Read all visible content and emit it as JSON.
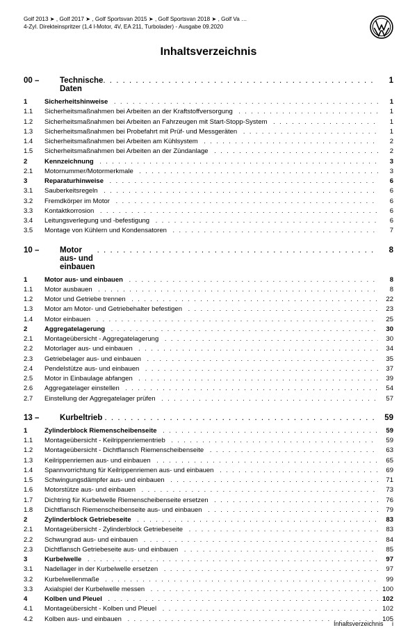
{
  "header": {
    "line1": "Golf 2013 ➤ , Golf 2017 ➤ , Golf Sportsvan 2015 ➤ , Golf Sportsvan 2018 ➤ , Golf Va …",
    "line2": "4-Zyl. Direkteinspritzer (1,4 l-Motor, 4V, EA 211, Turbolader) - Ausgabe 09.2020"
  },
  "title": "Inhaltsverzeichnis",
  "footer": {
    "label": "Inhaltsverzeichnis",
    "page": "i"
  },
  "chapters": [
    {
      "num": "00 –",
      "title": "Technische Daten",
      "page": "1",
      "entries": [
        {
          "num": "1",
          "label": "Sicherheitshinweise",
          "page": "1",
          "bold": true
        },
        {
          "num": "1.1",
          "label": "Sicherheitsmaßnahmen bei Arbeiten an der Kraftstoffversorgung",
          "page": "1"
        },
        {
          "num": "1.2",
          "label": "Sicherheitsmaßnahmen bei Arbeiten an Fahrzeugen mit Start-Stopp-System",
          "page": "1"
        },
        {
          "num": "1.3",
          "label": "Sicherheitsmaßnahmen bei Probefahrt mit Prüf- und Messgeräten",
          "page": "1"
        },
        {
          "num": "1.4",
          "label": "Sicherheitsmaßnahmen bei Arbeiten am Kühlsystem",
          "page": "2"
        },
        {
          "num": "1.5",
          "label": "Sicherheitsmaßnahmen bei Arbeiten an der Zündanlage",
          "page": "2"
        },
        {
          "num": "2",
          "label": "Kennzeichnung",
          "page": "3",
          "bold": true
        },
        {
          "num": "2.1",
          "label": "Motornummer/Motormerkmale",
          "page": "3"
        },
        {
          "num": "3",
          "label": "Reparaturhinweise",
          "page": "6",
          "bold": true
        },
        {
          "num": "3.1",
          "label": "Sauberkeitsregeln",
          "page": "6"
        },
        {
          "num": "3.2",
          "label": "Fremdkörper im Motor",
          "page": "6"
        },
        {
          "num": "3.3",
          "label": "Kontaktkorrosion",
          "page": "6"
        },
        {
          "num": "3.4",
          "label": "Leitungsverlegung und -befestigung",
          "page": "6"
        },
        {
          "num": "3.5",
          "label": "Montage von Kühlern und Kondensatoren",
          "page": "7"
        }
      ]
    },
    {
      "num": "10 –",
      "title": "Motor aus- und einbauen",
      "page": "8",
      "entries": [
        {
          "num": "1",
          "label": "Motor aus- und einbauen",
          "page": "8",
          "bold": true
        },
        {
          "num": "1.1",
          "label": "Motor ausbauen",
          "page": "8"
        },
        {
          "num": "1.2",
          "label": "Motor und Getriebe trennen",
          "page": "22"
        },
        {
          "num": "1.3",
          "label": "Motor am Motor- und Getriebehalter befestigen",
          "page": "23"
        },
        {
          "num": "1.4",
          "label": "Motor einbauen",
          "page": "25"
        },
        {
          "num": "2",
          "label": "Aggregatelagerung",
          "page": "30",
          "bold": true
        },
        {
          "num": "2.1",
          "label": "Montageübersicht - Aggregatelagerung",
          "page": "30"
        },
        {
          "num": "2.2",
          "label": "Motorlager aus- und einbauen",
          "page": "34"
        },
        {
          "num": "2.3",
          "label": "Getriebelager aus- und einbauen",
          "page": "35"
        },
        {
          "num": "2.4",
          "label": "Pendelstütze aus- und einbauen",
          "page": "37"
        },
        {
          "num": "2.5",
          "label": "Motor in Einbaulage abfangen",
          "page": "39"
        },
        {
          "num": "2.6",
          "label": "Aggregatelager einstellen",
          "page": "54"
        },
        {
          "num": "2.7",
          "label": "Einstellung der Aggregatelager prüfen",
          "page": "57"
        }
      ]
    },
    {
      "num": "13 –",
      "title": "Kurbeltrieb",
      "page": "59",
      "entries": [
        {
          "num": "1",
          "label": "Zylinderblock Riemenscheibenseite",
          "page": "59",
          "bold": true
        },
        {
          "num": "1.1",
          "label": "Montageübersicht - Keilrippenriementrieb",
          "page": "59"
        },
        {
          "num": "1.2",
          "label": "Montageübersicht - Dichtflansch Riemenscheibenseite",
          "page": "63"
        },
        {
          "num": "1.3",
          "label": "Keilrippenriemen aus- und einbauen",
          "page": "65"
        },
        {
          "num": "1.4",
          "label": "Spannvorrichtung für Keilrippenriemen aus- und einbauen",
          "page": "69"
        },
        {
          "num": "1.5",
          "label": "Schwingungsdämpfer aus- und einbauen",
          "page": "71"
        },
        {
          "num": "1.6",
          "label": "Motorstütze aus- und einbauen",
          "page": "73"
        },
        {
          "num": "1.7",
          "label": "Dichtring für Kurbelwelle Riemenscheibenseite ersetzen",
          "page": "76"
        },
        {
          "num": "1.8",
          "label": "Dichtflansch Riemenscheibenseite aus- und einbauen",
          "page": "79"
        },
        {
          "num": "2",
          "label": "Zylinderblock Getriebeseite",
          "page": "83",
          "bold": true
        },
        {
          "num": "2.1",
          "label": "Montageübersicht - Zylinderblock Getriebeseite",
          "page": "83"
        },
        {
          "num": "2.2",
          "label": "Schwungrad aus- und einbauen",
          "page": "84"
        },
        {
          "num": "2.3",
          "label": "Dichtflansch Getriebeseite aus- und einbauen",
          "page": "85"
        },
        {
          "num": "3",
          "label": "Kurbelwelle",
          "page": "97",
          "bold": true
        },
        {
          "num": "3.1",
          "label": "Nadellager in der Kurbelwelle ersetzen",
          "page": "97"
        },
        {
          "num": "3.2",
          "label": "Kurbelwellenmaße",
          "page": "99"
        },
        {
          "num": "3.3",
          "label": "Axialspiel der Kurbelwelle messen",
          "page": "100"
        },
        {
          "num": "4",
          "label": "Kolben und Pleuel",
          "page": "102",
          "bold": true
        },
        {
          "num": "4.1",
          "label": "Montageübersicht - Kolben und Pleuel",
          "page": "102"
        },
        {
          "num": "4.2",
          "label": "Kolben aus- und einbauen",
          "page": "105"
        }
      ]
    }
  ]
}
